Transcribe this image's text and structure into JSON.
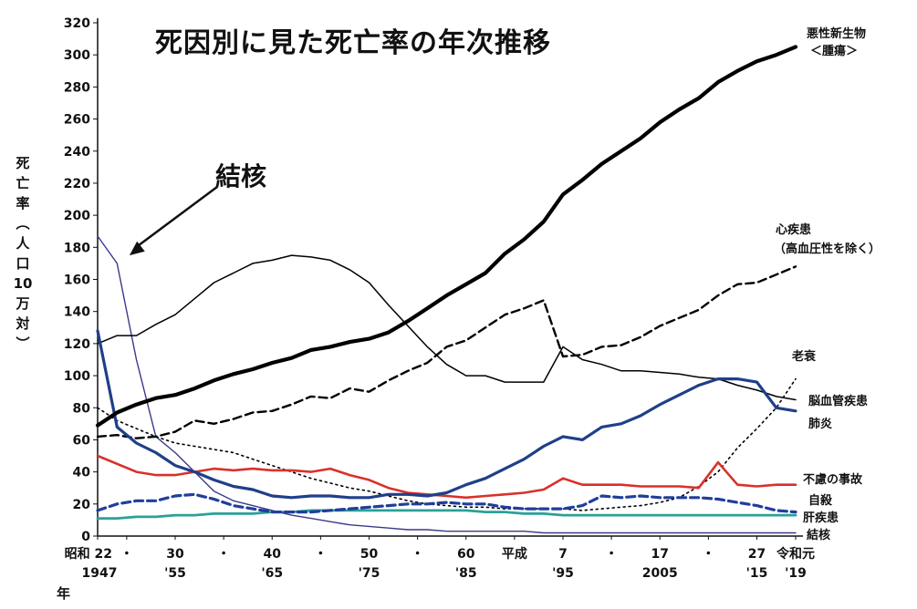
{
  "chart_data": {
    "type": "line",
    "title": "死因別に見た死亡率の年次推移",
    "ylabel_chars": [
      "死",
      "亡",
      "率",
      "︵",
      "人",
      "口",
      "10",
      "万",
      "対",
      "︶"
    ],
    "x_unit_label": "年",
    "annotation": "結核",
    "ylim": [
      0,
      320
    ],
    "yticks": [
      0,
      20,
      40,
      60,
      80,
      100,
      120,
      140,
      160,
      180,
      200,
      220,
      240,
      260,
      280,
      300,
      320
    ],
    "xlim": [
      1947,
      2019
    ],
    "x_ticks_top": [
      {
        "x": 1947,
        "label": "昭和 22"
      },
      {
        "x": 1950,
        "label": "・"
      },
      {
        "x": 1955,
        "label": "30"
      },
      {
        "x": 1960,
        "label": "・"
      },
      {
        "x": 1965,
        "label": "40"
      },
      {
        "x": 1970,
        "label": "・"
      },
      {
        "x": 1975,
        "label": "50"
      },
      {
        "x": 1980,
        "label": "・"
      },
      {
        "x": 1985,
        "label": "60"
      },
      {
        "x": 1990,
        "label": "平成"
      },
      {
        "x": 1995,
        "label": "7"
      },
      {
        "x": 2000,
        "label": "・"
      },
      {
        "x": 2005,
        "label": "17"
      },
      {
        "x": 2010,
        "label": "・"
      },
      {
        "x": 2015,
        "label": "27"
      },
      {
        "x": 2019,
        "label": "令和元"
      }
    ],
    "x_ticks_bottom": [
      {
        "x": 1947,
        "label": "1947"
      },
      {
        "x": 1955,
        "label": "'55"
      },
      {
        "x": 1965,
        "label": "'65"
      },
      {
        "x": 1975,
        "label": "'75"
      },
      {
        "x": 1985,
        "label": "'85"
      },
      {
        "x": 1995,
        "label": "'95"
      },
      {
        "x": 2005,
        "label": "2005"
      },
      {
        "x": 2015,
        "label": "'15"
      },
      {
        "x": 2019,
        "label": "'19"
      }
    ],
    "x": [
      1947,
      1949,
      1951,
      1953,
      1955,
      1957,
      1959,
      1961,
      1963,
      1965,
      1967,
      1969,
      1971,
      1973,
      1975,
      1977,
      1979,
      1981,
      1983,
      1985,
      1987,
      1989,
      1991,
      1993,
      1995,
      1997,
      1999,
      2001,
      2003,
      2005,
      2007,
      2009,
      2011,
      2013,
      2015,
      2017,
      2019
    ],
    "series": [
      {
        "name": "悪性新生物",
        "name_line2": "＜腫瘍＞",
        "color": "#000000",
        "style": "thick",
        "values": [
          69,
          77,
          82,
          86,
          88,
          92,
          97,
          101,
          104,
          108,
          111,
          116,
          118,
          121,
          123,
          127,
          134,
          142,
          150,
          157,
          164,
          176,
          185,
          196,
          213,
          222,
          232,
          240,
          248,
          258,
          266,
          273,
          283,
          290,
          296,
          300,
          305
        ]
      },
      {
        "name": "心疾患",
        "name_line2": "（高血圧性を除く）",
        "color": "#000000",
        "style": "dashed",
        "values": [
          62,
          63,
          61,
          62,
          65,
          72,
          70,
          73,
          77,
          78,
          82,
          87,
          86,
          92,
          90,
          97,
          103,
          108,
          118,
          122,
          130,
          138,
          142,
          147,
          112,
          113,
          118,
          119,
          124,
          131,
          136,
          141,
          150,
          157,
          158,
          163,
          168
        ]
      },
      {
        "name": "脳血管疾患",
        "color": "#000000",
        "style": "thin",
        "values": [
          120,
          125,
          125,
          132,
          138,
          148,
          158,
          164,
          170,
          172,
          175,
          174,
          172,
          166,
          158,
          144,
          131,
          118,
          107,
          100,
          100,
          96,
          96,
          96,
          118,
          110,
          107,
          103,
          103,
          102,
          101,
          99,
          98,
          94,
          91,
          87,
          85
        ]
      },
      {
        "name": "肺炎",
        "color": "#1f3f8a",
        "style": "medium",
        "values": [
          128,
          68,
          58,
          52,
          44,
          40,
          35,
          31,
          29,
          25,
          24,
          25,
          25,
          24,
          24,
          26,
          26,
          25,
          27,
          32,
          36,
          42,
          48,
          56,
          62,
          60,
          68,
          70,
          75,
          82,
          88,
          94,
          98,
          98,
          96,
          80,
          78
        ]
      },
      {
        "name": "老衰",
        "color": "#000000",
        "style": "dotted",
        "values": [
          80,
          72,
          67,
          62,
          58,
          56,
          54,
          52,
          48,
          44,
          40,
          36,
          33,
          30,
          28,
          25,
          22,
          20,
          19,
          18,
          18,
          17,
          17,
          17,
          17,
          16,
          17,
          18,
          19,
          21,
          24,
          31,
          40,
          55,
          67,
          80,
          98
        ]
      },
      {
        "name": "不慮の事故",
        "color": "#d8312a",
        "style": "red",
        "values": [
          50,
          45,
          40,
          38,
          38,
          40,
          42,
          41,
          42,
          41,
          41,
          40,
          42,
          38,
          35,
          30,
          27,
          26,
          25,
          24,
          25,
          26,
          27,
          29,
          36,
          32,
          32,
          32,
          31,
          31,
          31,
          30,
          46,
          32,
          31,
          32,
          32
        ]
      },
      {
        "name": "自殺",
        "color": "#1f3f9a",
        "style": "bluedash",
        "values": [
          16,
          20,
          22,
          22,
          25,
          26,
          23,
          19,
          17,
          15,
          15,
          15,
          16,
          17,
          18,
          19,
          20,
          20,
          21,
          20,
          20,
          18,
          17,
          17,
          17,
          19,
          25,
          24,
          25,
          24,
          24,
          24,
          23,
          21,
          19,
          16,
          15
        ]
      },
      {
        "name": "肝疾患",
        "color": "#2aa198",
        "style": "teal",
        "values": [
          11,
          11,
          12,
          12,
          13,
          13,
          14,
          14,
          14,
          15,
          15,
          16,
          16,
          16,
          16,
          16,
          16,
          16,
          16,
          16,
          15,
          15,
          14,
          14,
          13,
          13,
          13,
          13,
          13,
          13,
          13,
          13,
          13,
          13,
          13,
          13,
          13
        ]
      },
      {
        "name": "結核",
        "color": "#3a3a8a",
        "style": "thinblue",
        "values": [
          187,
          170,
          110,
          62,
          52,
          40,
          28,
          22,
          19,
          16,
          13,
          11,
          9,
          7,
          6,
          5,
          4,
          4,
          3,
          3,
          3,
          3,
          3,
          2,
          2,
          2,
          2,
          2,
          2,
          2,
          2,
          2,
          2,
          2,
          2,
          2,
          2
        ]
      }
    ]
  }
}
